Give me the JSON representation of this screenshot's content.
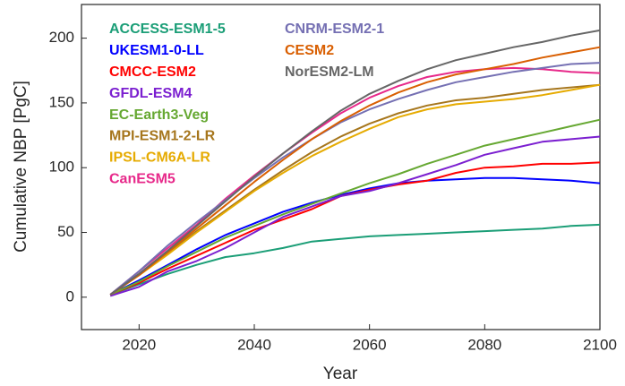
{
  "chart_data": {
    "type": "line",
    "xlabel": "Year",
    "ylabel": "Cumulative NBP [PgC]",
    "x": [
      2015,
      2020,
      2025,
      2030,
      2035,
      2040,
      2045,
      2050,
      2055,
      2060,
      2065,
      2070,
      2075,
      2080,
      2085,
      2090,
      2095,
      2100
    ],
    "xlim": [
      2010,
      2100
    ],
    "xticks": [
      2020,
      2040,
      2060,
      2080,
      2100
    ],
    "ylim": [
      -25,
      226
    ],
    "yticks": [
      0,
      50,
      100,
      150,
      200
    ],
    "grid": false,
    "series": [
      {
        "name": "ACCESS-ESM1-5",
        "color": "#1b9e77",
        "values": [
          2,
          10,
          18,
          25,
          31,
          34,
          38,
          43,
          45,
          47,
          48,
          49,
          50,
          51,
          52,
          53,
          55,
          56
        ]
      },
      {
        "name": "UKESM1-0-LL",
        "color": "#0000ff",
        "values": [
          2,
          13,
          25,
          37,
          48,
          57,
          66,
          73,
          79,
          84,
          88,
          90,
          91,
          92,
          92,
          91,
          90,
          88
        ]
      },
      {
        "name": "CMCC-ESM2",
        "color": "#ff0000",
        "values": [
          2,
          11,
          22,
          32,
          42,
          52,
          60,
          68,
          78,
          83,
          87,
          90,
          96,
          100,
          101,
          103,
          103,
          104
        ]
      },
      {
        "name": "GFDL-ESM4",
        "color": "#7b1fd0",
        "values": [
          1,
          8,
          20,
          28,
          38,
          50,
          62,
          70,
          78,
          82,
          88,
          95,
          102,
          110,
          115,
          120,
          122,
          124
        ]
      },
      {
        "name": "EC-Earth3-Veg",
        "color": "#66a832",
        "values": [
          2,
          12,
          24,
          35,
          46,
          55,
          64,
          72,
          80,
          88,
          95,
          103,
          110,
          117,
          122,
          127,
          132,
          137
        ]
      },
      {
        "name": "MPI-ESM1-2-LR",
        "color": "#a6761d",
        "values": [
          2,
          18,
          34,
          51,
          67,
          83,
          98,
          112,
          124,
          134,
          142,
          148,
          152,
          154,
          157,
          160,
          162,
          164
        ]
      },
      {
        "name": "IPSL-CM6A-LR",
        "color": "#e6ab02",
        "values": [
          2,
          17,
          33,
          50,
          66,
          82,
          96,
          109,
          120,
          130,
          139,
          145,
          149,
          151,
          153,
          156,
          160,
          164
        ]
      },
      {
        "name": "CanESM5",
        "color": "#e7298a",
        "values": [
          2,
          20,
          38,
          56,
          76,
          94,
          111,
          127,
          142,
          154,
          163,
          170,
          174,
          176,
          177,
          176,
          174,
          173
        ]
      },
      {
        "name": "CNRM-ESM2-1",
        "color": "#7570b3",
        "values": [
          2,
          20,
          40,
          58,
          75,
          92,
          108,
          122,
          135,
          145,
          153,
          160,
          166,
          170,
          174,
          177,
          180,
          181
        ]
      },
      {
        "name": "CESM2",
        "color": "#d95f02",
        "values": [
          2,
          17,
          35,
          53,
          71,
          89,
          106,
          122,
          136,
          148,
          158,
          166,
          172,
          176,
          180,
          185,
          189,
          193
        ]
      },
      {
        "name": "NorESM2-LM",
        "color": "#666666",
        "values": [
          2,
          18,
          36,
          55,
          74,
          93,
          111,
          128,
          144,
          157,
          167,
          176,
          183,
          188,
          193,
          197,
          202,
          206
        ]
      }
    ]
  }
}
